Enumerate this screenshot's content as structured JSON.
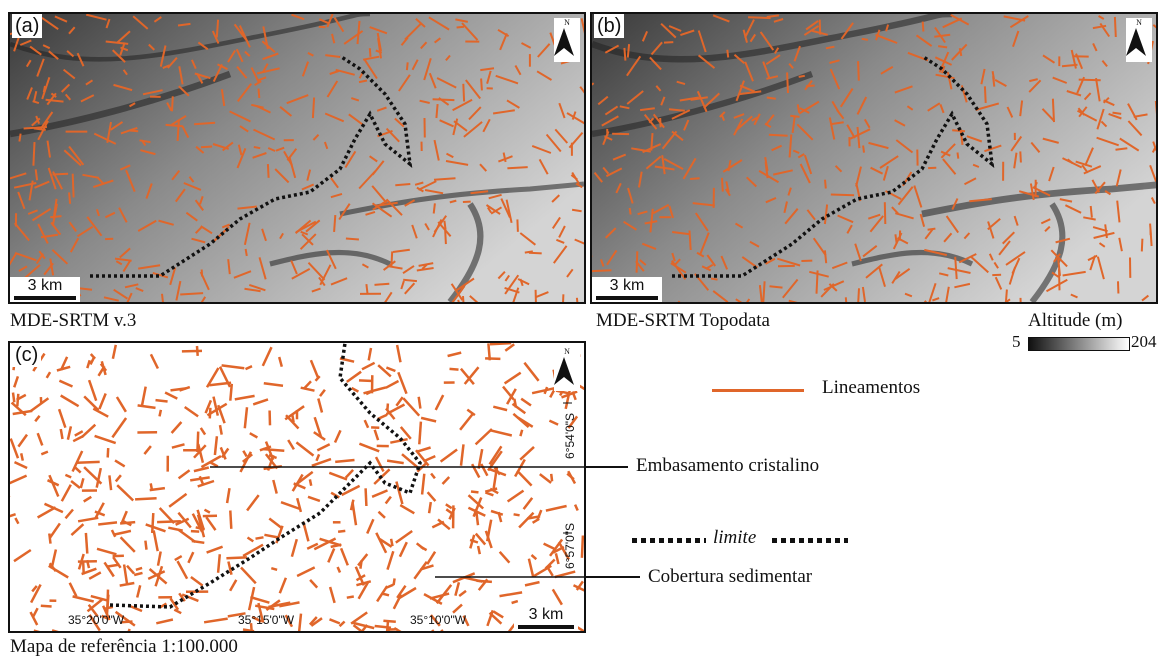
{
  "panels": {
    "a": {
      "label": "(a)",
      "caption": "MDE-SRTM v.3",
      "scale": "3 km",
      "north": "N"
    },
    "b": {
      "label": "(b)",
      "caption": "MDE-SRTM Topodata",
      "scale": "3 km",
      "north": "N"
    },
    "c": {
      "label": "(c)",
      "caption": "Mapa de referência 1:100.000",
      "scale": "3 km",
      "north": "N"
    }
  },
  "altitude_legend": {
    "title": "Altitude (m)",
    "min": "5",
    "max": "204",
    "ramp": [
      "#111111",
      "#ffffff"
    ]
  },
  "legend": {
    "lineamentos": "Lineamentos",
    "limite": "limite",
    "embasamento": "Embasamento cristalino",
    "cobertura": "Cobertura sedimentar"
  },
  "coordinates": {
    "longitudes": [
      "35°20'0\"W",
      "35°15'0\"W",
      "35°10'0\"W"
    ],
    "latitudes": [
      "6°54'0\"S",
      "6°57'0\"S"
    ]
  },
  "colors": {
    "lineament": "#e0662a",
    "boundary": "#111111",
    "dem_dark": "#1a1a1a",
    "dem_light": "#d8d8d8"
  }
}
